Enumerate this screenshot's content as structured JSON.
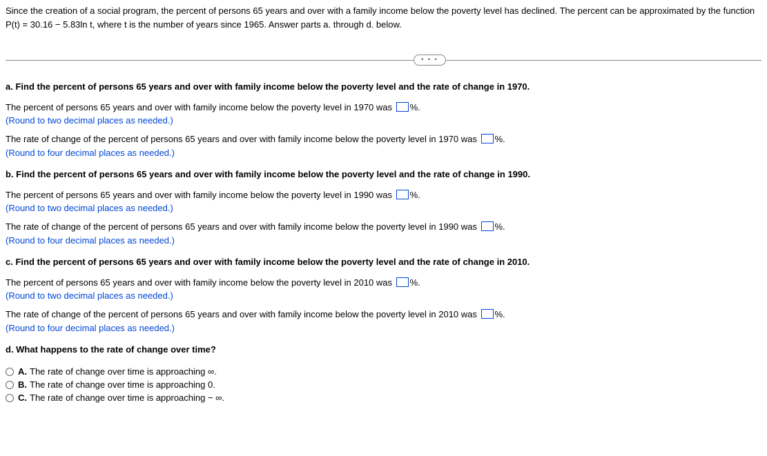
{
  "intro": {
    "line1": "Since the creation of a social program, the percent of persons 65 years and over with a family income below the poverty level has declined. The percent can be approximated by the function",
    "line2": "P(t) = 30.16 − 5.83ln t, where t is the number of years since 1965. Answer parts a. through d. below."
  },
  "dots": "• • •",
  "qa": {
    "heading": "a. Find the percent of persons 65 years and over with family income below the poverty level and the rate of change in 1970.",
    "percent_pre": "The percent of persons 65 years and over with family income below the poverty level in 1970 was ",
    "percent_post": "%.",
    "percent_hint": "(Round to two decimal places as needed.)",
    "rate_pre": "The rate of change of the percent of persons 65 years and over with family income below the poverty level in 1970 was ",
    "rate_post": "%.",
    "rate_hint": "(Round to four decimal places as needed.)"
  },
  "qb": {
    "heading": "b. Find the percent of persons 65 years and over with family income below the poverty level and the rate of change in 1990.",
    "percent_pre": "The percent of persons 65 years and over with family income below the poverty level in 1990 was ",
    "percent_post": "%.",
    "percent_hint": "(Round to two decimal places as needed.)",
    "rate_pre": "The rate of change of the percent of persons 65 years and over with family income below the poverty level in 1990 was ",
    "rate_post": "%.",
    "rate_hint": "(Round to four decimal places as needed.)"
  },
  "qc": {
    "heading": "c. Find the percent of persons 65 years and over with family income below the poverty level and the rate of change in 2010.",
    "percent_pre": "The percent of persons 65 years and over with family income below the poverty level in 2010 was ",
    "percent_post": "%.",
    "percent_hint": "(Round to two decimal places as needed.)",
    "rate_pre": "The rate of change of the percent of persons 65 years and over with family income below the poverty level in 2010 was ",
    "rate_post": "%.",
    "rate_hint": "(Round to four decimal places as needed.)"
  },
  "qd": {
    "heading": "d. What happens to the rate of change over time?",
    "options": [
      {
        "letter": "A.",
        "text": "The rate of change over time is approaching ∞."
      },
      {
        "letter": "B.",
        "text": "The rate of change over time is approaching 0."
      },
      {
        "letter": "C.",
        "text": "The rate of change over time is approaching − ∞."
      }
    ]
  }
}
